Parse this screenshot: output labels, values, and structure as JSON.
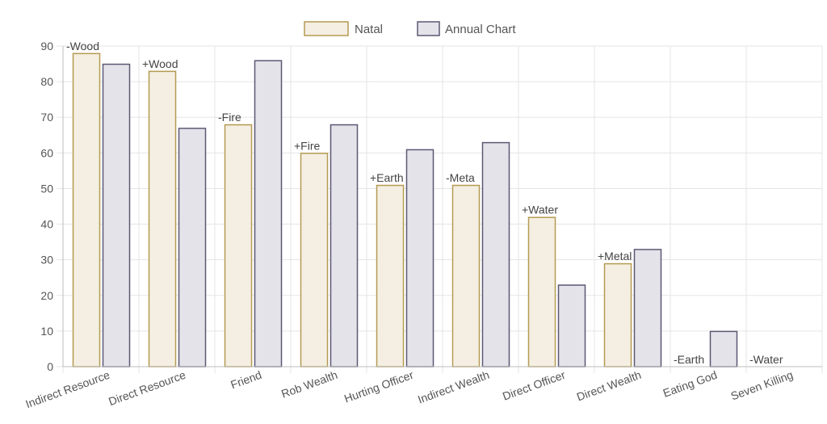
{
  "colors": {
    "natal_fill": "#f4efe2",
    "natal_stroke": "#b59a52",
    "annual_fill": "#e4e3ea",
    "annual_stroke": "#5b5873",
    "grid": "#e5e5e5",
    "axis": "#bdbdbd"
  },
  "chart_data": {
    "type": "bar",
    "categories": [
      "Indirect Resource",
      "Direct Resource",
      "Friend",
      "Rob Wealth",
      "Hurting Officer",
      "Indirect Wealth",
      "Direct Officer",
      "Direct Wealth",
      "Eating God",
      "Seven Killing"
    ],
    "series": [
      {
        "name": "Natal",
        "values": [
          88,
          83,
          68,
          60,
          51,
          51,
          42,
          29,
          0,
          0
        ]
      },
      {
        "name": "Annual Chart",
        "values": [
          85,
          67,
          86,
          68,
          61,
          63,
          23,
          33,
          10,
          0
        ]
      }
    ],
    "annotations": [
      "-Wood",
      "+Wood",
      "-Fire",
      "+Fire",
      "+Earth",
      "-Meta",
      "+Water",
      "+Metal",
      "-Earth",
      "-Water"
    ],
    "yticks": [
      0,
      10,
      20,
      30,
      40,
      50,
      60,
      70,
      80,
      90
    ],
    "ylim": [
      0,
      90
    ],
    "grid": true,
    "legend_position": "top-center"
  }
}
